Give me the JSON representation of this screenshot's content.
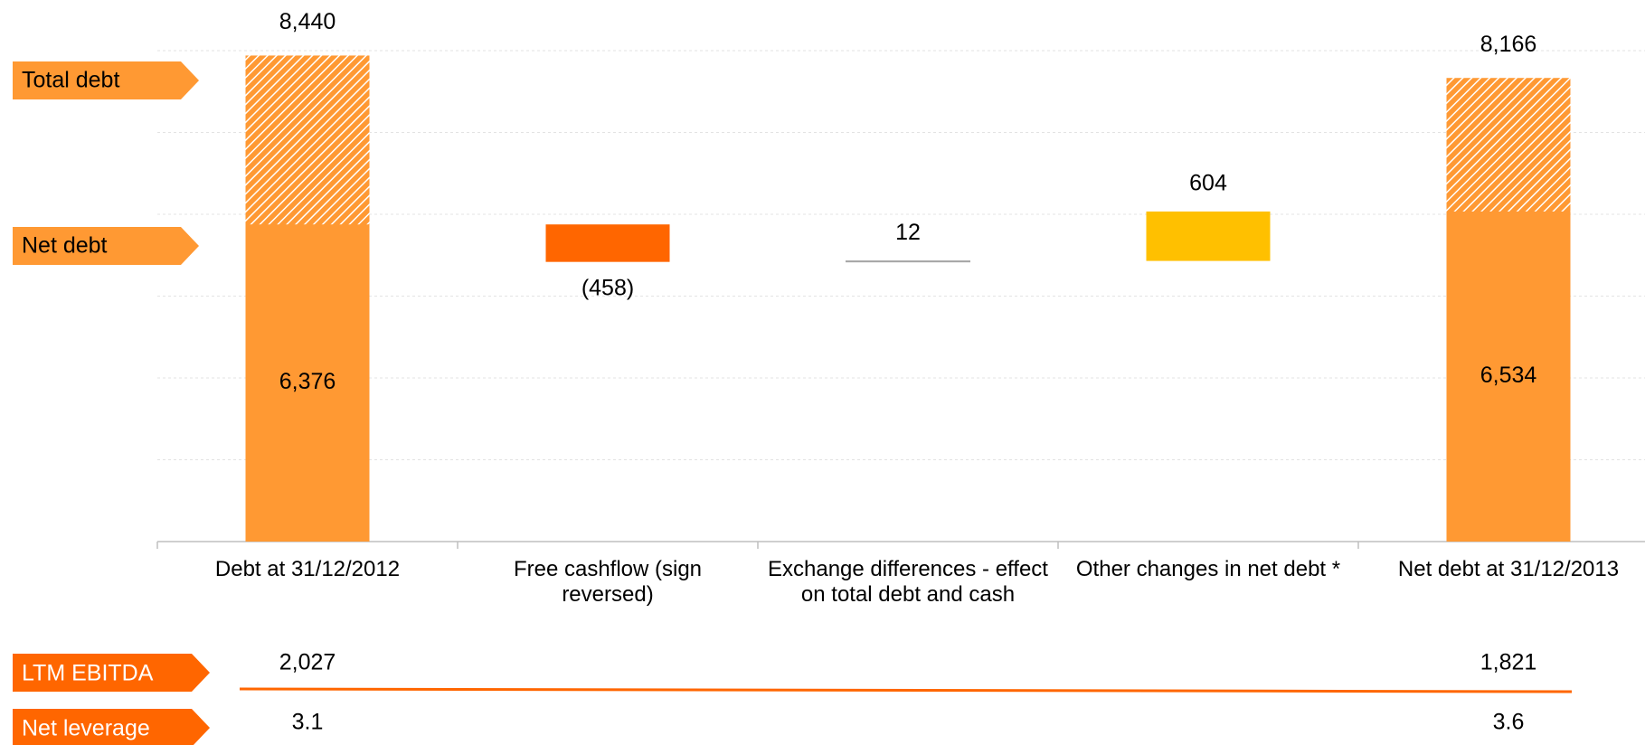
{
  "chart_data": {
    "type": "waterfall",
    "categories": [
      "Debt at 31/12/2012",
      "Free cashflow (sign reversed)",
      "Exchange differences - effect on total debt and cash",
      "Other changes in net debt *",
      "Net debt at 31/12/2013"
    ],
    "series": [
      {
        "name": "Total debt",
        "color": "#FF9933",
        "hatched": true,
        "values": [
          8440,
          null,
          null,
          null,
          8166
        ],
        "value_labels": [
          "8,440",
          null,
          null,
          null,
          "8,166"
        ]
      },
      {
        "name": "Net debt",
        "color": "#FF9933",
        "colors": [
          "#FF9933",
          "#FF6600",
          "#A6A6A6",
          "#FFC000",
          "#FF9933"
        ],
        "values": [
          6376,
          -458,
          12,
          604,
          6534
        ],
        "value_labels": [
          "6,376",
          "(458)",
          "12",
          "604",
          "6,534"
        ]
      }
    ],
    "ylim": [
      2500,
      8500
    ],
    "yticks": [
      2500,
      3500,
      4500,
      5500,
      6500,
      7500,
      8500
    ],
    "grid": true,
    "footer_rows": [
      {
        "name": "LTM EBITDA",
        "color": "#FF6600",
        "values": [
          2027,
          null,
          null,
          null,
          1821
        ],
        "value_labels": [
          "2,027",
          null,
          null,
          null,
          "1,821"
        ]
      },
      {
        "name": "Net leverage",
        "color": "#FF6600",
        "values": [
          3.1,
          null,
          null,
          null,
          3.6
        ]
      }
    ]
  }
}
